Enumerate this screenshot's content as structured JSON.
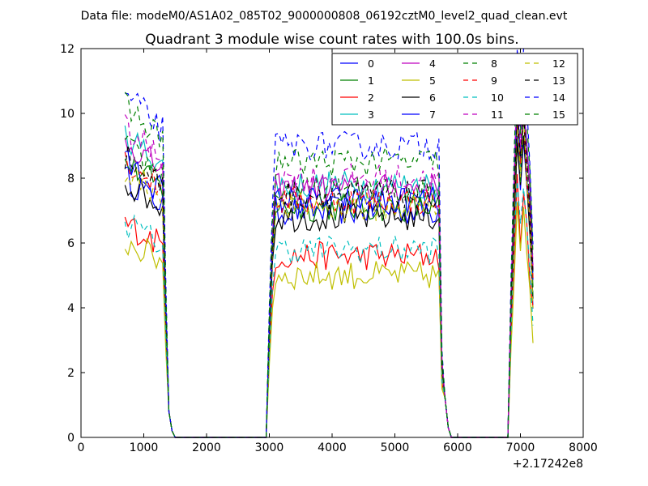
{
  "figure": {
    "suptitle": "Data file: modeM0/AS1A02_085T02_9000000808_06192cztM0_level2_quad_clean.evt"
  },
  "chart_data": {
    "type": "line",
    "title": "Quadrant 3 module wise count rates with 100.0s bins.",
    "xlabel": "",
    "ylabel": "",
    "x_offset_label": "+2.17242e8",
    "xlim": [
      0,
      8000
    ],
    "ylim": [
      0,
      12
    ],
    "xticks": [
      0,
      1000,
      2000,
      3000,
      4000,
      5000,
      6000,
      7000,
      8000
    ],
    "yticks": [
      0,
      2,
      4,
      6,
      8,
      10,
      12
    ],
    "xtick_labels": [
      "0",
      "1000",
      "2000",
      "3000",
      "4000",
      "5000",
      "6000",
      "7000",
      "8000"
    ],
    "ytick_labels": [
      "0",
      "2",
      "4",
      "6",
      "8",
      "10",
      "12"
    ],
    "grid": false,
    "legend_position": "top-right",
    "legend_columns": 4,
    "series": [
      {
        "name": "0",
        "color": "#0000ff",
        "dash": "solid",
        "level": 7.0
      },
      {
        "name": "1",
        "color": "#008000",
        "dash": "solid",
        "level": 7.1
      },
      {
        "name": "2",
        "color": "#ff0000",
        "dash": "solid",
        "level": 5.6
      },
      {
        "name": "3",
        "color": "#00bfbf",
        "dash": "solid",
        "level": 7.8
      },
      {
        "name": "4",
        "color": "#bf00bf",
        "dash": "solid",
        "level": 7.7
      },
      {
        "name": "5",
        "color": "#bfbf00",
        "dash": "solid",
        "level": 5.0
      },
      {
        "name": "6",
        "color": "#000000",
        "dash": "solid",
        "level": 6.8
      },
      {
        "name": "7",
        "color": "#0000ff",
        "dash": "solid",
        "level": 7.3
      },
      {
        "name": "8",
        "color": "#008000",
        "dash": "dashed",
        "level": 7.6
      },
      {
        "name": "9",
        "color": "#ff0000",
        "dash": "dashed",
        "level": 7.3
      },
      {
        "name": "10",
        "color": "#00bfbf",
        "dash": "dashed",
        "level": 5.8
      },
      {
        "name": "11",
        "color": "#bf00bf",
        "dash": "dashed",
        "level": 8.0
      },
      {
        "name": "12",
        "color": "#bfbf00",
        "dash": "dashed",
        "level": 7.1
      },
      {
        "name": "13",
        "color": "#000000",
        "dash": "dashed",
        "level": 7.5
      },
      {
        "name": "14",
        "color": "#0000ff",
        "dash": "dashed",
        "level": 9.0
      },
      {
        "name": "15",
        "color": "#008000",
        "dash": "dashed",
        "level": 8.5
      }
    ],
    "observation_segments": [
      {
        "x_start": 700,
        "x_end": 1300,
        "profile": "high"
      },
      {
        "x_start": 3100,
        "x_end": 5700,
        "profile": "flat"
      },
      {
        "x_start": 6900,
        "x_end": 7200,
        "profile": "peak"
      }
    ]
  }
}
